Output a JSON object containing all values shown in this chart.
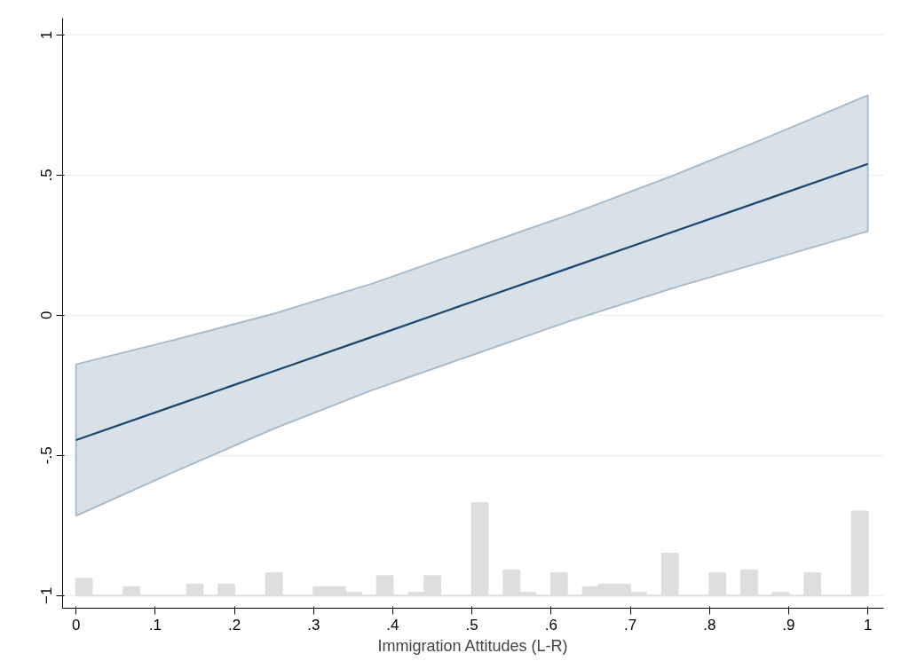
{
  "chart_data": {
    "type": "line",
    "xlabel": "Immigration Attitudes (L-R)",
    "xlim": [
      -0.017,
      1.02
    ],
    "ylim": [
      -1.045,
      1.06
    ],
    "xticks": [
      0,
      {
        "value": 0.1,
        "label": ".1"
      },
      {
        "value": 0.2,
        "label": ".2"
      },
      {
        "value": 0.3,
        "label": ".3"
      },
      {
        "value": 0.4,
        "label": ".4"
      },
      {
        "value": 0.5,
        "label": ".5"
      },
      {
        "value": 0.6,
        "label": ".6"
      },
      {
        "value": 0.7,
        "label": ".7"
      },
      {
        "value": 0.8,
        "label": ".8"
      },
      {
        "value": 0.9,
        "label": ".9"
      },
      1
    ],
    "yticks": [
      -1,
      {
        "value": -0.5,
        "label": "-.5"
      },
      0,
      {
        "value": 0.5,
        "label": ".5"
      },
      1
    ],
    "grid": "y",
    "series": [
      {
        "type": "bar",
        "color": "#dedede",
        "x": [
          0.01,
          0.03,
          0.05,
          0.07,
          0.09,
          0.11,
          0.13,
          0.15,
          0.17,
          0.19,
          0.21,
          0.23,
          0.25,
          0.27,
          0.29,
          0.31,
          0.33,
          0.35,
          0.37,
          0.39,
          0.41,
          0.43,
          0.45,
          0.47,
          0.49,
          0.51,
          0.53,
          0.55,
          0.57,
          0.59,
          0.61,
          0.63,
          0.65,
          0.67,
          0.69,
          0.71,
          0.73,
          0.75,
          0.77,
          0.79,
          0.81,
          0.83,
          0.85,
          0.87,
          0.89,
          0.91,
          0.93,
          0.95,
          0.97,
          0.99
        ],
        "values": [
          0.06,
          0,
          0,
          0.03,
          0,
          0,
          0,
          0.04,
          0,
          0.04,
          0,
          0,
          0.08,
          0,
          0,
          0.03,
          0.03,
          0.01,
          0,
          0.07,
          0,
          0.01,
          0.07,
          0,
          0,
          0.33,
          0,
          0.09,
          0.01,
          0,
          0.08,
          0,
          0.03,
          0.04,
          0.04,
          0.01,
          0,
          0.15,
          0,
          0,
          0.08,
          0,
          0.09,
          0,
          0.01,
          0,
          0.08,
          0,
          0,
          0.3
        ],
        "base": [
          -1,
          -1,
          -1,
          -1,
          -1,
          -1,
          -1,
          -1,
          -1,
          -1,
          -1,
          -1,
          -1,
          -1,
          -1,
          -1,
          -1,
          -1,
          -1,
          -1,
          -1,
          -1,
          -1,
          -1,
          -1,
          -1,
          -1,
          -1,
          -1,
          -1,
          -1,
          -1,
          -1,
          -1,
          -1,
          -1,
          -1,
          -1,
          -1,
          -1,
          -1,
          -1,
          -1,
          -1,
          -1,
          -1,
          -1,
          -1,
          -1,
          -1
        ]
      },
      {
        "color": "#1a476f",
        "x": [
          0,
          0.125,
          0.25,
          0.375,
          0.5,
          0.625,
          0.75,
          0.875,
          1
        ],
        "values": [
          -0.445,
          -0.322,
          -0.199,
          -0.076,
          0.048,
          0.171,
          0.294,
          0.417,
          0.54
        ],
        "lower": [
          -0.715,
          -0.557,
          -0.404,
          -0.266,
          -0.142,
          -0.019,
          0.094,
          0.197,
          0.3
        ],
        "upper": [
          -0.175,
          -0.087,
          0.006,
          0.114,
          0.238,
          0.361,
          0.494,
          0.637,
          0.785
        ]
      }
    ]
  }
}
